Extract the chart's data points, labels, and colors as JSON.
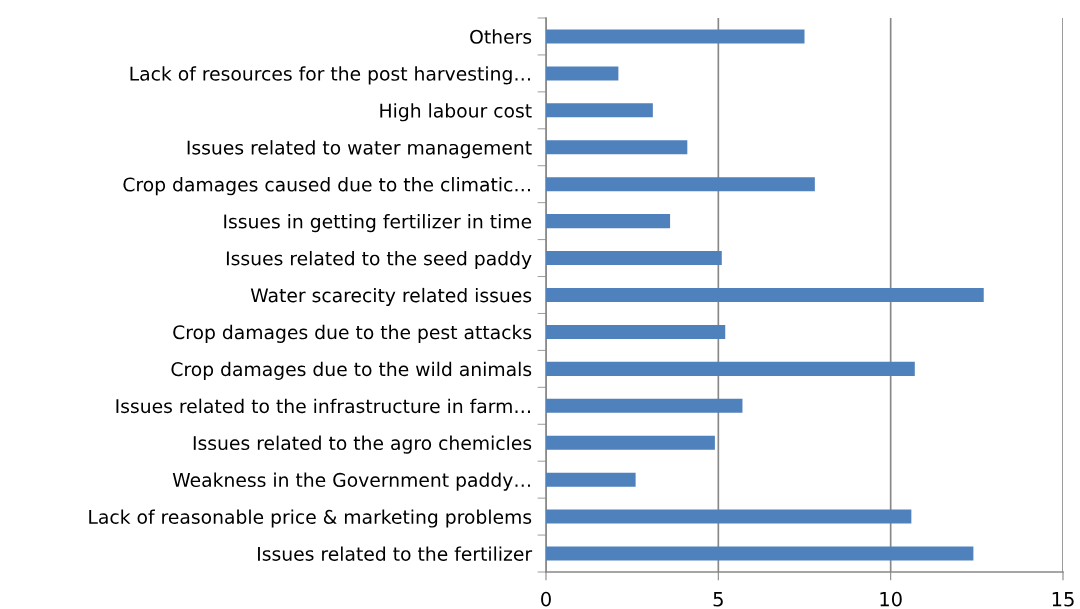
{
  "chart_data": {
    "type": "bar",
    "orientation": "horizontal",
    "color": "#4f81bd",
    "grid": "x",
    "categories": [
      "Others",
      "Lack of resources for the post harvesting…",
      "High labour cost",
      "Issues related to water management",
      "Crop damages caused due to the climatic…",
      "Issues in getting fertilizer in time",
      "Issues related to the seed paddy",
      "Water scarecity related issues",
      "Crop damages due to the pest attacks",
      "Crop damages due to the wild animals",
      "Issues related to the infrastructure in farm…",
      "Issues related to the agro chemicles",
      "Weakness in the Government paddy…",
      "Lack of reasonable price & marketing problems",
      "Issues related to the fertilizer"
    ],
    "values": [
      7.5,
      2.1,
      3.1,
      4.1,
      7.8,
      3.6,
      5.1,
      12.7,
      5.2,
      10.7,
      5.7,
      4.9,
      2.6,
      10.6,
      12.4
    ],
    "xlim": [
      0,
      15
    ],
    "xticks": [
      0,
      5,
      10,
      15
    ]
  }
}
